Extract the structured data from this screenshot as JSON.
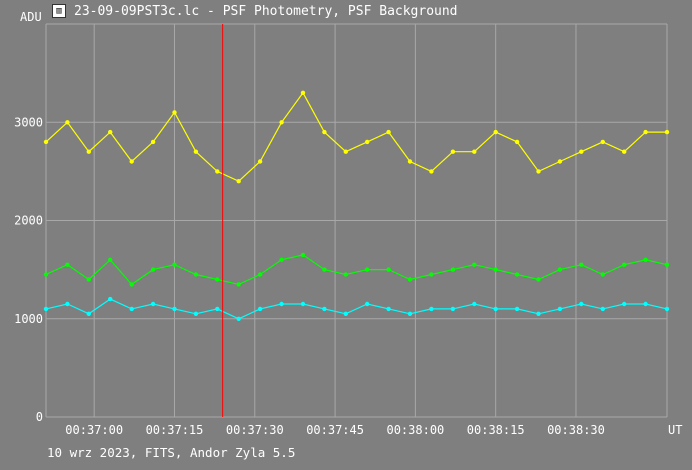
{
  "window": {
    "title": "23-09-09PST3c.lc - PSF Photometry, PSF Background",
    "icon": "app-icon"
  },
  "footer": "10 wrz 2023, FITS, Andor Zyla 5.5",
  "colors": {
    "background": "#7f7f7f",
    "grid": "#a8a8a8",
    "axis_text": "#ffffff",
    "marker": "#ff0000",
    "yellow_series": "#ffff00",
    "green_series": "#00ff00",
    "cyan_series": "#00ffff"
  },
  "chart_data": {
    "type": "line",
    "ylabel": "ADU",
    "xlabel": "UT",
    "ylim": [
      0,
      4000
    ],
    "xlim": [
      "00:36:51",
      "00:38:47"
    ],
    "y_ticks": [
      "0",
      "1000",
      "2000",
      "3000"
    ],
    "x_ticks": [
      "00:37:00",
      "00:37:15",
      "00:37:30",
      "00:37:45",
      "00:38:00",
      "00:38:15",
      "00:38:30"
    ],
    "grid": true,
    "marker_line_time": "00:37:24",
    "series": [
      {
        "color": "#ffff00",
        "x_start": "00:36:51",
        "x_step_seconds": 4,
        "values": [
          2800,
          3000,
          2700,
          2900,
          2600,
          2800,
          3100,
          2700,
          2500,
          2400,
          2600,
          3000,
          3300,
          2900,
          2700,
          2800,
          2900,
          2600,
          2500,
          2700,
          2700,
          2900,
          2800,
          2500,
          2600,
          2700,
          2800,
          2700,
          2900,
          2900
        ]
      },
      {
        "color": "#00ff00",
        "x_start": "00:36:51",
        "x_step_seconds": 4,
        "values": [
          1450,
          1550,
          1400,
          1600,
          1350,
          1500,
          1550,
          1450,
          1400,
          1350,
          1450,
          1600,
          1650,
          1500,
          1450,
          1500,
          1500,
          1400,
          1450,
          1500,
          1550,
          1500,
          1450,
          1400,
          1500,
          1550,
          1450,
          1550,
          1600,
          1550
        ]
      },
      {
        "color": "#00ffff",
        "x_start": "00:36:51",
        "x_step_seconds": 4,
        "values": [
          1100,
          1150,
          1050,
          1200,
          1100,
          1150,
          1100,
          1050,
          1100,
          1000,
          1100,
          1150,
          1150,
          1100,
          1050,
          1150,
          1100,
          1050,
          1100,
          1100,
          1150,
          1100,
          1100,
          1050,
          1100,
          1150,
          1100,
          1150,
          1150,
          1100
        ]
      }
    ]
  }
}
